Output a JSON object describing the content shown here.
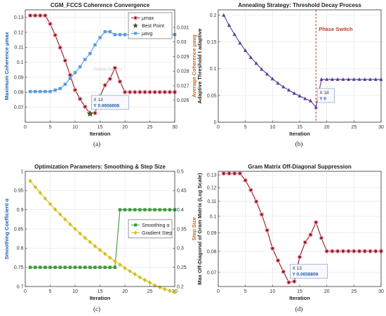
{
  "chart_data": [
    {
      "id": "a",
      "type": "line",
      "title": "CGM_FCCS Coherence Convergence",
      "panel_label": "(a)",
      "xlabel": "Iteration",
      "ylabel_left": "Maximum Coherence μmax",
      "ylabel_right": "Average Coherence μavg",
      "xlim": [
        0,
        30
      ],
      "ylim_left": [
        0.06,
        0.135
      ],
      "ylim_right": [
        0.0245,
        0.0322
      ],
      "xticks": [
        0,
        5,
        10,
        15,
        20,
        25,
        30
      ],
      "yticks_left": [
        0.07,
        0.08,
        0.09,
        0.1,
        0.11,
        0.12,
        0.13
      ],
      "yticks_right": [
        0.026,
        0.027,
        0.028,
        0.029,
        0.03,
        0.031
      ],
      "left_color": "#1f5fae",
      "right_color": "#c0682b",
      "grid": true,
      "legend": "top-right",
      "annotation_text": "Global Switch",
      "datatip": {
        "x_label": "X 13",
        "y_label": "Y 0.0656808",
        "x": 13,
        "y": 0.0656808
      },
      "series": [
        {
          "name": "μmax",
          "axis": "left",
          "color": "#8b1a1a",
          "marker": "circle",
          "x": [
            1,
            2,
            3,
            4,
            5,
            6,
            7,
            8,
            9,
            10,
            11,
            12,
            13,
            14,
            15,
            16,
            17,
            18,
            19,
            20,
            21,
            22,
            23,
            24,
            25,
            26,
            27,
            28,
            29,
            30
          ],
          "values": [
            0.1312,
            0.1312,
            0.1312,
            0.1312,
            0.1256,
            0.1181,
            0.1098,
            0.1011,
            0.0915,
            0.0815,
            0.0755,
            0.0703,
            0.0657,
            0.0661,
            0.0772,
            0.0847,
            0.0889,
            0.0962,
            0.0871,
            0.0801,
            0.0801,
            0.0801,
            0.0801,
            0.0801,
            0.0801,
            0.0801,
            0.0801,
            0.0801,
            0.0801,
            0.0801
          ]
        },
        {
          "name": "Best Point",
          "axis": "left",
          "color": "#4a5a1a",
          "marker": "star",
          "x": [
            13
          ],
          "values": [
            0.0656808
          ]
        },
        {
          "name": "μavg",
          "axis": "right",
          "color": "#5a9ae0",
          "marker": "square",
          "x": [
            1,
            2,
            3,
            4,
            5,
            6,
            7,
            8,
            9,
            10,
            11,
            12,
            13,
            14,
            15,
            16,
            17,
            18,
            19,
            20,
            21,
            22,
            23,
            24,
            25,
            26,
            27,
            28,
            29,
            30
          ],
          "values": [
            0.0266,
            0.0266,
            0.0266,
            0.0266,
            0.0266,
            0.0267,
            0.0268,
            0.0271,
            0.0275,
            0.0279,
            0.0283,
            0.0288,
            0.0292,
            0.0298,
            0.0303,
            0.0307,
            0.0307,
            0.0305,
            0.0305,
            0.0305,
            0.0305,
            0.0305,
            0.0305,
            0.0305,
            0.0305,
            0.0305,
            0.0305,
            0.0305,
            0.0305,
            0.0305
          ]
        }
      ]
    },
    {
      "id": "b",
      "type": "line",
      "title": "Annealing Strategy: Threshold Decay Process",
      "panel_label": "(b)",
      "xlabel": "Iteration",
      "ylabel": "Adaptive Threshold t adaptive",
      "xlim": [
        0,
        30
      ],
      "ylim": [
        0,
        0.21
      ],
      "xticks": [
        0,
        5,
        10,
        15,
        20,
        25,
        30
      ],
      "yticks": [
        0,
        0.05,
        0.1,
        0.15,
        0.2
      ],
      "grid": true,
      "vline": {
        "x": 18,
        "label": "Phase Switch",
        "color": "#c0392b"
      },
      "datatip": {
        "x_label": "X 18",
        "y_label": "Y 0",
        "x": 18,
        "y": 0
      },
      "series": [
        {
          "name": "Threshold",
          "color": "#5b3a9b",
          "marker": "triangle",
          "x": [
            1,
            2,
            3,
            4,
            5,
            6,
            7,
            8,
            9,
            10,
            11,
            12,
            13,
            14,
            15,
            16,
            17,
            18,
            19,
            20,
            21,
            22,
            23,
            24,
            25,
            26,
            27,
            28,
            29,
            30
          ],
          "values": [
            0.2,
            0.181,
            0.164,
            0.148,
            0.134,
            0.121,
            0.11,
            0.099,
            0.09,
            0.081,
            0.073,
            0.066,
            0.06,
            0.054,
            0.049,
            0.044,
            0.04,
            0.028,
            0.08,
            0.08,
            0.08,
            0.08,
            0.08,
            0.08,
            0.08,
            0.08,
            0.08,
            0.08,
            0.08,
            0.08
          ]
        }
      ]
    },
    {
      "id": "c",
      "type": "line",
      "title": "Optimization Parameters: Smoothing & Step Size",
      "panel_label": "(c)",
      "xlabel": "Iteration",
      "ylabel_left": "Smoothing Coefficient α",
      "ylabel_right": "Step Size",
      "xlim": [
        0,
        30
      ],
      "ylim_left": [
        0.7,
        1.0
      ],
      "ylim_right": [
        0.2,
        0.5
      ],
      "xticks": [
        0,
        5,
        10,
        15,
        20,
        25,
        30
      ],
      "yticks_left": [
        0.7,
        0.75,
        0.8,
        0.85,
        0.9,
        0.95,
        1.0
      ],
      "yticks_right": [
        0.2,
        0.25,
        0.3,
        0.35,
        0.4,
        0.45,
        0.5
      ],
      "left_color": "#1f5fae",
      "right_color": "#c0682b",
      "grid": true,
      "legend": "center-right",
      "series": [
        {
          "name": "Smoothing α",
          "axis": "left",
          "color": "#3a9a3a",
          "marker": "square",
          "x": [
            1,
            2,
            3,
            4,
            5,
            6,
            7,
            8,
            9,
            10,
            11,
            12,
            13,
            14,
            15,
            16,
            17,
            18,
            19,
            20,
            21,
            22,
            23,
            24,
            25,
            26,
            27,
            28,
            29,
            30
          ],
          "values": [
            0.75,
            0.75,
            0.75,
            0.75,
            0.75,
            0.75,
            0.75,
            0.75,
            0.75,
            0.75,
            0.75,
            0.75,
            0.75,
            0.75,
            0.75,
            0.75,
            0.75,
            0.75,
            0.9,
            0.9,
            0.9,
            0.9,
            0.9,
            0.9,
            0.9,
            0.9,
            0.9,
            0.9,
            0.9,
            0.9
          ]
        },
        {
          "name": "Gradient Step",
          "axis": "right",
          "color": "#d4bf1a",
          "marker": "diamond",
          "x": [
            1,
            2,
            3,
            4,
            5,
            6,
            7,
            8,
            9,
            10,
            11,
            12,
            13,
            14,
            15,
            16,
            17,
            18,
            19,
            20,
            21,
            22,
            23,
            24,
            25,
            26,
            27,
            28,
            29,
            30
          ],
          "values": [
            0.475,
            0.459,
            0.444,
            0.429,
            0.415,
            0.401,
            0.388,
            0.375,
            0.362,
            0.35,
            0.338,
            0.327,
            0.316,
            0.305,
            0.295,
            0.285,
            0.275,
            0.266,
            0.257,
            0.248,
            0.24,
            0.232,
            0.224,
            0.217,
            0.21,
            0.203,
            0.198,
            0.193,
            0.189,
            0.185
          ]
        }
      ]
    },
    {
      "id": "d",
      "type": "line",
      "title": "Gram Matrix Off-Diagonal Suppression",
      "panel_label": "(d)",
      "xlabel": "Iteration",
      "ylabel": "Max Off-Diagonal of Gram Matrix (Log Scale)",
      "xlim": [
        0,
        30
      ],
      "ylim": [
        0.064,
        0.133
      ],
      "yscale": "log",
      "xticks": [
        0,
        5,
        10,
        15,
        20,
        25,
        30
      ],
      "yticks": [
        0.07,
        0.08,
        0.09,
        0.1,
        0.11,
        0.12,
        0.13
      ],
      "grid": true,
      "datatip": {
        "x_label": "X 13",
        "y_label": "Y 0.0656808",
        "x": 13,
        "y": 0.0656808
      },
      "series": [
        {
          "name": "Max Off-Diagonal",
          "color": "#8b1a1a",
          "marker": "circle",
          "x": [
            1,
            2,
            3,
            4,
            5,
            6,
            7,
            8,
            9,
            10,
            11,
            12,
            13,
            14,
            15,
            16,
            17,
            18,
            19,
            20,
            21,
            22,
            23,
            24,
            25,
            26,
            27,
            28,
            29,
            30
          ],
          "values": [
            0.1312,
            0.1312,
            0.1312,
            0.1312,
            0.1256,
            0.1181,
            0.1098,
            0.1011,
            0.0915,
            0.0815,
            0.0755,
            0.0703,
            0.0657,
            0.0661,
            0.0772,
            0.0847,
            0.0889,
            0.0962,
            0.0871,
            0.0801,
            0.0801,
            0.0801,
            0.0801,
            0.0801,
            0.0801,
            0.0801,
            0.0801,
            0.0801,
            0.0801,
            0.0801
          ]
        }
      ]
    }
  ]
}
